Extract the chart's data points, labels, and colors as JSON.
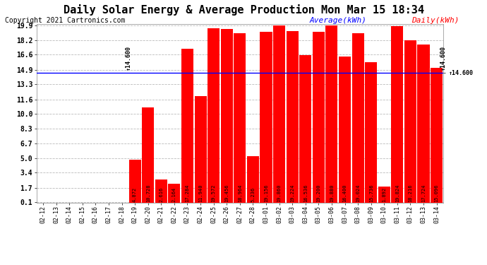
{
  "title": "Daily Solar Energy & Average Production Mon Mar 15 18:34",
  "copyright": "Copyright 2021 Cartronics.com",
  "average_label": "Average(kWh)",
  "daily_label": "Daily(kWh)",
  "average_value": 14.6,
  "categories": [
    "02-12",
    "02-13",
    "02-14",
    "02-15",
    "02-16",
    "02-17",
    "02-18",
    "02-19",
    "02-20",
    "02-21",
    "02-22",
    "02-23",
    "02-24",
    "02-25",
    "02-26",
    "02-27",
    "02-28",
    "03-01",
    "03-02",
    "03-03",
    "03-04",
    "03-05",
    "03-06",
    "03-07",
    "03-08",
    "03-09",
    "03-10",
    "03-11",
    "03-12",
    "03-13",
    "03-14"
  ],
  "values": [
    0.0,
    0.0,
    0.0,
    0.0,
    0.0,
    0.0,
    0.0,
    4.872,
    10.728,
    2.616,
    2.164,
    17.284,
    11.94,
    19.572,
    19.456,
    18.964,
    5.236,
    19.156,
    19.86,
    19.224,
    16.536,
    19.2,
    19.88,
    16.4,
    19.024,
    15.736,
    1.892,
    19.824,
    18.216,
    17.724,
    15.096
  ],
  "bar_color": "#ff0000",
  "avg_line_color": "#0000ff",
  "ylim_min": 0.1,
  "ylim_max": 19.9,
  "yticks": [
    0.1,
    1.7,
    3.4,
    5.0,
    6.7,
    8.3,
    10.0,
    11.6,
    13.3,
    14.9,
    16.6,
    18.2,
    19.9
  ],
  "bg_color": "#ffffff",
  "grid_color": "#bbbbbb",
  "title_fontsize": 11,
  "copyright_fontsize": 7,
  "label_fontsize": 7,
  "avg_line_label_text": "14.600",
  "bar_value_fontsize": 5,
  "legend_fontsize": 8,
  "xtick_fontsize": 6,
  "ytick_fontsize": 7
}
